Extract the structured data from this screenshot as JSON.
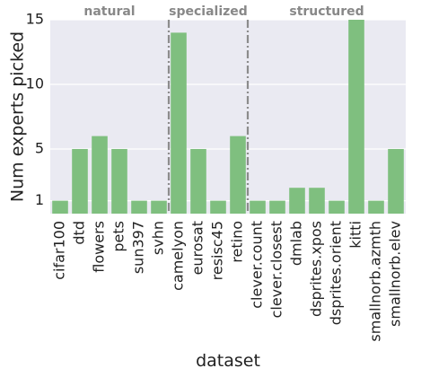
{
  "chart_data": {
    "type": "bar",
    "xlabel": "dataset",
    "ylabel": "Num experts picked",
    "ylim": [
      0,
      15
    ],
    "yticks": [
      1,
      5,
      10,
      15
    ],
    "grid": true,
    "bar_color": "#7fbf7f",
    "background_color": "#eaeaf2",
    "separator_color": "#8c8c8c",
    "categories": [
      "cifar100",
      "dtd",
      "flowers",
      "pets",
      "sun397",
      "svhn",
      "camelyon",
      "eurosat",
      "resisc45",
      "retino",
      "clever.count",
      "clever.closest",
      "dmlab",
      "dsprites.xpos",
      "dsprites.orient",
      "kitti",
      "smallnorb.azmth",
      "smallnorb.elev"
    ],
    "values": [
      1,
      5,
      6,
      5,
      1,
      1,
      14,
      5,
      1,
      6,
      1,
      1,
      2,
      2,
      1,
      15,
      1,
      5
    ],
    "groups": [
      {
        "label": "natural",
        "start": 0,
        "end": 5
      },
      {
        "label": "specialized",
        "start": 6,
        "end": 9
      },
      {
        "label": "structured",
        "start": 10,
        "end": 17
      }
    ]
  }
}
